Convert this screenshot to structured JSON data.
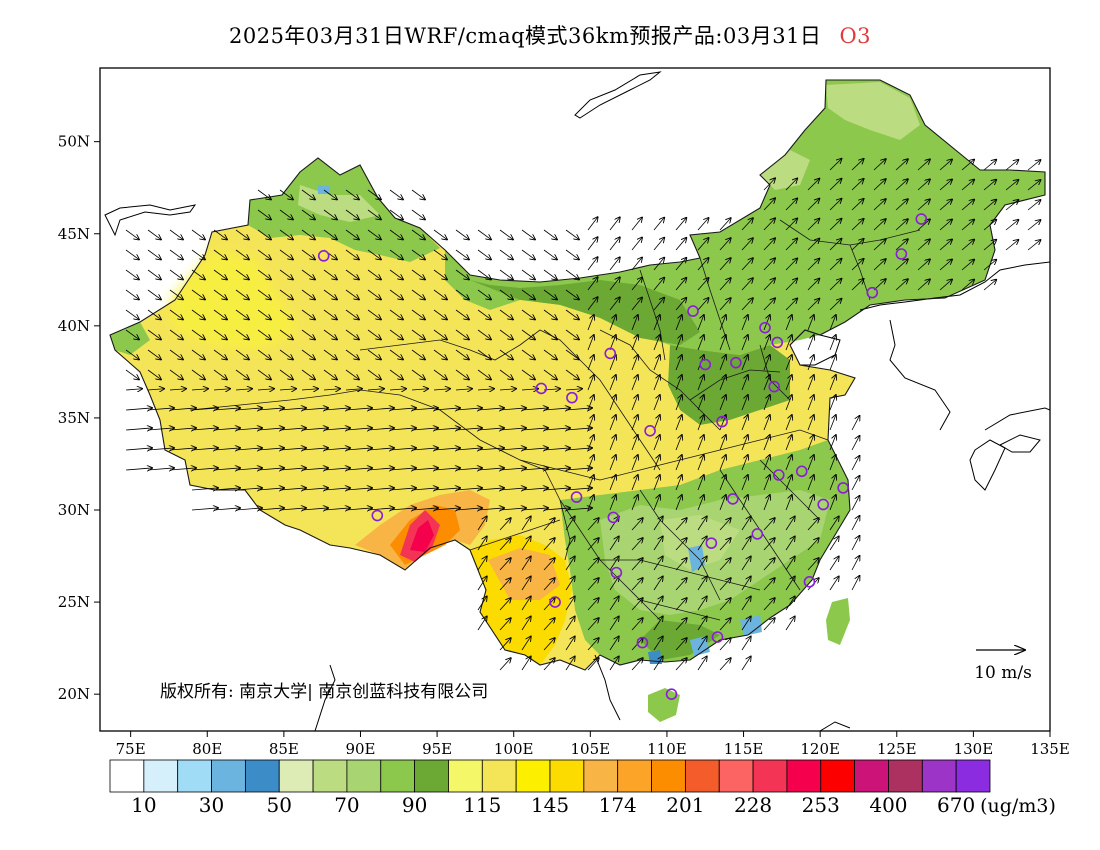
{
  "title": {
    "main": "2025年03月31日WRF/cmaq模式36km预报产品:03月31日",
    "species": "O3"
  },
  "map": {
    "lon_range": [
      73,
      135
    ],
    "lat_range": [
      18,
      54
    ],
    "lon_ticks": [
      {
        "value": 75,
        "label": "75E"
      },
      {
        "value": 80,
        "label": "80E"
      },
      {
        "value": 85,
        "label": "85E"
      },
      {
        "value": 90,
        "label": "90E"
      },
      {
        "value": 95,
        "label": "95E"
      },
      {
        "value": 100,
        "label": "100E"
      },
      {
        "value": 105,
        "label": "105E"
      },
      {
        "value": 110,
        "label": "110E"
      },
      {
        "value": 115,
        "label": "115E"
      },
      {
        "value": 120,
        "label": "120E"
      },
      {
        "value": 125,
        "label": "125E"
      },
      {
        "value": 130,
        "label": "130E"
      },
      {
        "value": 135,
        "label": "135E"
      }
    ],
    "lat_ticks": [
      {
        "value": 20,
        "label": "20N"
      },
      {
        "value": 25,
        "label": "25N"
      },
      {
        "value": 30,
        "label": "30N"
      },
      {
        "value": 35,
        "label": "35N"
      },
      {
        "value": 40,
        "label": "40N"
      },
      {
        "value": 45,
        "label": "45N"
      },
      {
        "value": 50,
        "label": "50N"
      }
    ],
    "copyright": "版权所有: 南京大学| 南京创蓝科技有限公司",
    "wind_reference": "10 m/s",
    "cities": [
      {
        "lon": 87.6,
        "lat": 43.8
      },
      {
        "lon": 91.1,
        "lat": 29.7
      },
      {
        "lon": 101.8,
        "lat": 36.6
      },
      {
        "lon": 103.8,
        "lat": 36.1
      },
      {
        "lon": 106.3,
        "lat": 38.5
      },
      {
        "lon": 111.7,
        "lat": 40.8
      },
      {
        "lon": 116.4,
        "lat": 39.9
      },
      {
        "lon": 117.2,
        "lat": 39.1
      },
      {
        "lon": 114.5,
        "lat": 38.0
      },
      {
        "lon": 112.5,
        "lat": 37.9
      },
      {
        "lon": 117.0,
        "lat": 36.7
      },
      {
        "lon": 113.6,
        "lat": 34.8
      },
      {
        "lon": 108.9,
        "lat": 34.3
      },
      {
        "lon": 104.1,
        "lat": 30.7
      },
      {
        "lon": 106.5,
        "lat": 29.6
      },
      {
        "lon": 106.7,
        "lat": 26.6
      },
      {
        "lon": 102.7,
        "lat": 25.0
      },
      {
        "lon": 108.4,
        "lat": 22.8
      },
      {
        "lon": 113.3,
        "lat": 23.1
      },
      {
        "lon": 110.3,
        "lat": 20.0
      },
      {
        "lon": 112.9,
        "lat": 28.2
      },
      {
        "lon": 114.3,
        "lat": 30.6
      },
      {
        "lon": 115.9,
        "lat": 28.7
      },
      {
        "lon": 117.3,
        "lat": 31.9
      },
      {
        "lon": 118.8,
        "lat": 32.1
      },
      {
        "lon": 120.2,
        "lat": 30.3
      },
      {
        "lon": 121.5,
        "lat": 31.2
      },
      {
        "lon": 119.3,
        "lat": 26.1
      },
      {
        "lon": 123.4,
        "lat": 41.8
      },
      {
        "lon": 125.3,
        "lat": 43.9
      },
      {
        "lon": 126.6,
        "lat": 45.8
      }
    ]
  },
  "colorbar": {
    "colors": [
      "#ffffff",
      "#d6f0fb",
      "#a0dcf5",
      "#6cb4e0",
      "#3c8cc8",
      "#dcecb4",
      "#bcdc82",
      "#a8d472",
      "#8cc84c",
      "#6ca834",
      "#f4f868",
      "#f4e458",
      "#fcf000",
      "#fcdc00",
      "#f8b444",
      "#fca428",
      "#fc8c00",
      "#f45c2c",
      "#fc6464",
      "#f43454",
      "#f4004c",
      "#fc0000",
      "#cc1478",
      "#ac3060",
      "#9c34c8",
      "#8c2ce0"
    ],
    "labels": [
      "10",
      "30",
      "50",
      "70",
      "90",
      "115",
      "145",
      "174",
      "201",
      "228",
      "253",
      "400",
      "670"
    ],
    "unit": "(ug/m3)"
  }
}
